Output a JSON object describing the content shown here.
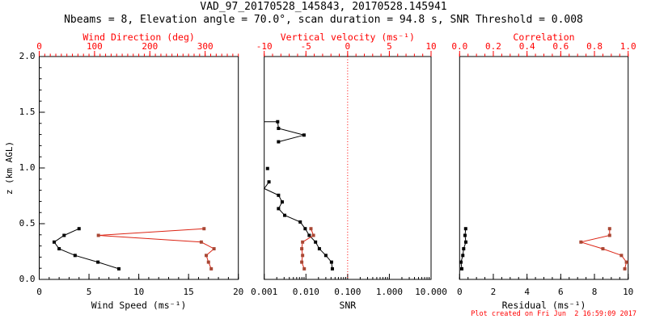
{
  "header": {
    "title": "VAD_97_20170528_145843, 20170528.145941",
    "subtitle": "Nbeams = 8, Elevation angle = 70.0°, scan duration = 94.8 s, SNR Threshold = 0.008"
  },
  "footer": {
    "created": "Plot created on Fri Jun  2 16:59:09 2017"
  },
  "colors": {
    "black": "#000000",
    "axis_red": "#ff0000",
    "red_line": "#dc2414",
    "red_marker": "#a94734"
  },
  "y_axis": {
    "label": "z (km AGL)",
    "tick_values": [
      0.0,
      0.5,
      1.0,
      1.5,
      2.0
    ],
    "tick_labels": [
      "0.0",
      "0.5",
      "1.0",
      "1.5",
      "2.0"
    ],
    "lim": [
      0,
      2
    ],
    "minor_step": 0.1
  },
  "chart_data": [
    {
      "name": "wind-panel",
      "type": "line",
      "bottom_axis": {
        "label": "Wind Speed (ms⁻¹)",
        "scale": "linear",
        "tick_values": [
          0,
          5,
          10,
          15,
          20
        ],
        "tick_labels": [
          "0",
          "5",
          "10",
          "15",
          "20"
        ],
        "range": [
          0,
          20
        ],
        "minor_step": 1
      },
      "top_axis": {
        "label": "Wind Direction (deg)",
        "scale": "linear",
        "tick_values": [
          0,
          100,
          200,
          300
        ],
        "tick_labels": [
          "0",
          "100",
          "200",
          "300"
        ],
        "range": [
          0,
          360
        ],
        "minor_step": 10
      },
      "series": [
        {
          "name": "wind-speed",
          "axis": "bottom",
          "color": "black",
          "points": [
            [
              4.0,
              0.455
            ],
            [
              2.5,
              0.395
            ],
            [
              1.5,
              0.335
            ],
            [
              2.0,
              0.275
            ],
            [
              3.6,
              0.215
            ],
            [
              5.9,
              0.155
            ],
            [
              8.0,
              0.095
            ]
          ]
        },
        {
          "name": "wind-direction",
          "axis": "top",
          "color": "red",
          "points": [
            [
              298,
              0.455
            ],
            [
              107,
              0.395
            ],
            [
              293,
              0.335
            ],
            [
              316,
              0.275
            ],
            [
              302,
              0.215
            ],
            [
              306,
              0.155
            ],
            [
              311,
              0.095
            ]
          ]
        }
      ]
    },
    {
      "name": "snr-panel",
      "type": "line",
      "bottom_axis": {
        "label": "SNR",
        "scale": "log",
        "tick_values": [
          0.001,
          0.01,
          0.1,
          1,
          10
        ],
        "tick_labels": [
          "0.001",
          "0.010",
          "0.100",
          "1.000",
          "10.000"
        ],
        "range": [
          0.001,
          10
        ]
      },
      "top_axis": {
        "label": "Vertical velocity (ms⁻¹)",
        "scale": "linear",
        "tick_values": [
          -10,
          -5,
          0,
          5,
          10
        ],
        "tick_labels": [
          "-10",
          "-5",
          "0",
          "5",
          "10"
        ],
        "range": [
          -10,
          10
        ],
        "minor_step": 1
      },
      "reference_line": {
        "axis": "top",
        "value": 0,
        "style": "dotted",
        "color": "axis_red"
      },
      "series": [
        {
          "name": "snr",
          "axis": "bottom",
          "color": "black",
          "points": [
            [
              0.001,
              1.415,
              0
            ],
            [
              0.0021,
              1.415
            ],
            [
              0.0022,
              1.355
            ],
            [
              0.009,
              1.295
            ],
            [
              0.0022,
              1.235
            ],
            null,
            [
              0.0012,
              0.995
            ],
            null,
            [
              0.0013,
              0.875
            ],
            [
              0.001,
              0.815,
              0
            ],
            [
              0.0022,
              0.755
            ],
            [
              0.0027,
              0.695
            ],
            [
              0.0022,
              0.635
            ],
            [
              0.0031,
              0.575
            ],
            [
              0.0073,
              0.515
            ],
            [
              0.0096,
              0.455
            ],
            [
              0.012,
              0.395
            ],
            [
              0.017,
              0.335
            ],
            [
              0.021,
              0.275
            ],
            [
              0.03,
              0.215
            ],
            [
              0.041,
              0.155
            ],
            [
              0.043,
              0.095
            ]
          ]
        },
        {
          "name": "vertical-velocity",
          "axis": "top",
          "color": "red",
          "points": [
            [
              -4.4,
              0.455
            ],
            [
              -4.1,
              0.395
            ],
            [
              -5.4,
              0.335
            ],
            [
              -5.5,
              0.275
            ],
            [
              -5.4,
              0.215
            ],
            [
              -5.5,
              0.155
            ],
            [
              -5.2,
              0.095
            ]
          ]
        }
      ]
    },
    {
      "name": "residual-panel",
      "type": "line",
      "bottom_axis": {
        "label": "Residual (ms⁻¹)",
        "scale": "linear",
        "tick_values": [
          0,
          2,
          4,
          6,
          8,
          10
        ],
        "tick_labels": [
          "0",
          "2",
          "4",
          "6",
          "8",
          "10"
        ],
        "range": [
          0,
          10
        ],
        "minor_step": 0.5
      },
      "top_axis": {
        "label": "Correlation",
        "scale": "linear",
        "tick_values": [
          0,
          0.2,
          0.4,
          0.6,
          0.8,
          1.0
        ],
        "tick_labels": [
          "0.0",
          "0.2",
          "0.4",
          "0.6",
          "0.8",
          "1.0"
        ],
        "range": [
          0,
          1
        ],
        "minor_step": 0.05
      },
      "series": [
        {
          "name": "residual",
          "axis": "bottom",
          "color": "black",
          "points": [
            [
              0.36,
              0.455
            ],
            [
              0.32,
              0.395
            ],
            [
              0.37,
              0.335
            ],
            [
              0.24,
              0.275
            ],
            [
              0.19,
              0.215
            ],
            [
              0.08,
              0.155
            ],
            [
              0.13,
              0.095
            ]
          ]
        },
        {
          "name": "correlation",
          "axis": "top",
          "color": "red",
          "points": [
            [
              0.89,
              0.455
            ],
            [
              0.89,
              0.395
            ],
            [
              0.72,
              0.335
            ],
            [
              0.85,
              0.275
            ],
            [
              0.96,
              0.215
            ],
            [
              0.99,
              0.155
            ],
            [
              0.98,
              0.095
            ]
          ]
        }
      ]
    }
  ]
}
